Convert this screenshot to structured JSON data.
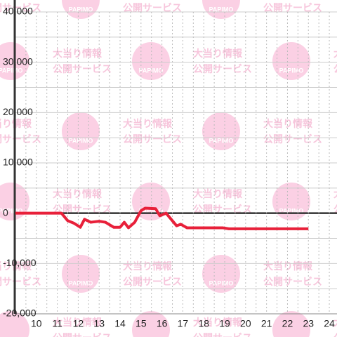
{
  "chart_data": {
    "type": "line",
    "x": [
      9,
      11.2,
      11.5,
      11.8,
      12.1,
      12.3,
      12.6,
      13.0,
      13.3,
      13.7,
      14.0,
      14.2,
      14.4,
      14.7,
      15.0,
      15.2,
      15.7,
      15.9,
      16.2,
      16.7,
      16.9,
      17.2,
      18.9,
      19.2,
      23.0
    ],
    "series": [
      {
        "color": "#e8203a",
        "values": [
          0,
          0,
          -1500,
          -2000,
          -2800,
          -1200,
          -1800,
          -1600,
          -1800,
          -2800,
          -2800,
          -1800,
          -2900,
          -1800,
          500,
          1000,
          900,
          -500,
          0,
          -2500,
          -2200,
          -2900,
          -2900,
          -3100,
          -3100
        ]
      }
    ],
    "xlim": [
      9,
      24.3
    ],
    "xticks": [
      10,
      11,
      12,
      13,
      14,
      15,
      16,
      17,
      18,
      19,
      20,
      21,
      22,
      23,
      24
    ],
    "x_minor_ticks": [
      9.5,
      10.5,
      11.5,
      12.5,
      13.5,
      14.5,
      15.5,
      16.5,
      17.5,
      18.5,
      19.5,
      20.5,
      21.5,
      22.5,
      23.5
    ],
    "ylim": [
      -20000,
      40000
    ],
    "yticks": [
      {
        "value": -20000,
        "label": "-20,000"
      },
      {
        "value": -10000,
        "label": "-10,000"
      },
      0,
      {
        "value": 10000,
        "label": "10,000"
      },
      {
        "value": 20000,
        "label": "20,000"
      },
      {
        "value": 30000,
        "label": "30,000"
      },
      {
        "value": 40000,
        "label": "40,000"
      }
    ],
    "y_minor_ticks": [
      -15000,
      -5000,
      5000,
      15000,
      25000,
      35000
    ],
    "grid": true,
    "watermark": {
      "logo": "PAPIMO",
      "lines": [
        "大当り情報",
        "公開サービス"
      ]
    }
  }
}
